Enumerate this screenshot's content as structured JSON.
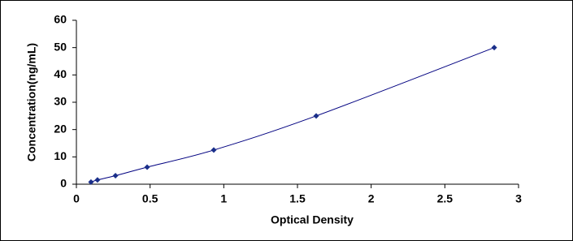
{
  "chart_data": {
    "type": "line",
    "x_label": "Optical Density",
    "y_label": "Concentration(ng/mL)",
    "xlim": [
      0,
      3
    ],
    "xticks": [
      0,
      0.5,
      1,
      1.5,
      2,
      2.5,
      3
    ],
    "ylim": [
      0,
      60
    ],
    "yticks": [
      0,
      10,
      20,
      30,
      40,
      50,
      60
    ],
    "series": [
      {
        "color": "#000080",
        "marker_color": "#1a2f8a",
        "x": [
          0.099,
          0.143,
          0.265,
          0.48,
          0.932,
          1.627,
          2.835
        ],
        "values": [
          0.78,
          1.56,
          3.12,
          6.25,
          12.5,
          25,
          50
        ]
      }
    ]
  }
}
